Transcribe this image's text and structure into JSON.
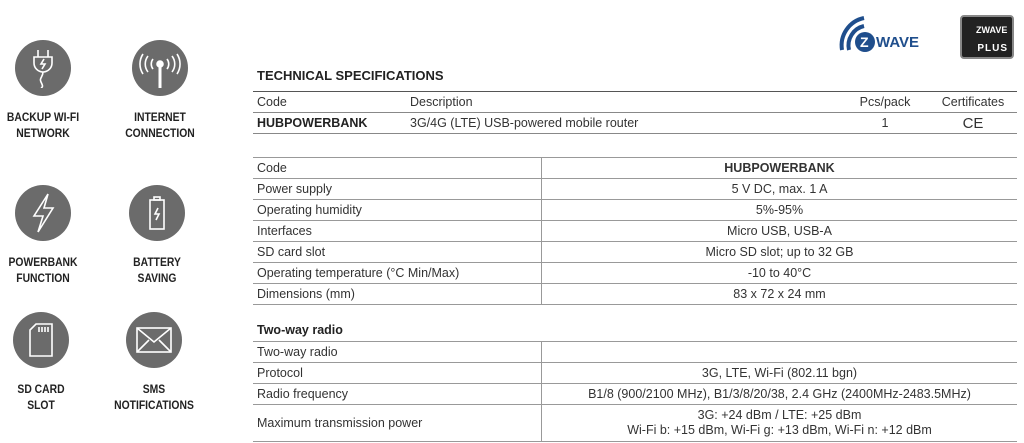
{
  "features": [
    {
      "icon": "plug-icon",
      "label1": "BACKUP WI-FI",
      "label2": "NETWORK"
    },
    {
      "icon": "antenna-icon",
      "label1": "INTERNET",
      "label2": "CONNECTION"
    },
    {
      "icon": "lightning-icon",
      "label1": "POWERBANK",
      "label2": "FUNCTION"
    },
    {
      "icon": "battery-icon",
      "label1": "BATTERY",
      "label2": "SAVING"
    },
    {
      "icon": "sd-card-icon",
      "label1": "SD CARD",
      "label2": "SLOT"
    },
    {
      "icon": "envelope-icon",
      "label1": "SMS",
      "label2": "NOTIFICATIONS"
    }
  ],
  "logos": {
    "zwave": "ZWAVE",
    "zwave_plus_top": "ZWAVE",
    "zwave_plus_bottom": "PLUS"
  },
  "title": "TECHNICAL SPECIFICATIONS",
  "product_table": {
    "headers": [
      "Code",
      "Description",
      "Pcs/pack",
      "Certificates"
    ],
    "row": [
      "HUBPOWERBANK",
      "3G/4G (LTE) USB-powered mobile router",
      "1",
      "CE"
    ]
  },
  "specs": [
    [
      "Code",
      "HUBPOWERBANK"
    ],
    [
      "Power supply",
      "5 V DC, max. 1 A"
    ],
    [
      "Operating humidity",
      "5%-95%"
    ],
    [
      "Interfaces",
      "Micro USB, USB-A"
    ],
    [
      "SD card slot",
      "Micro SD slot; up to 32 GB"
    ],
    [
      "Operating temperature (°C Min/Max)",
      "-10 to 40°C"
    ],
    [
      "Dimensions (mm)",
      "83 x 72 x 24 mm"
    ]
  ],
  "radio_title": "Two-way radio",
  "radio": [
    [
      "Two-way radio",
      ""
    ],
    [
      "Protocol",
      "3G, LTE, Wi-Fi (802.11 bgn)"
    ],
    [
      "Radio frequency",
      "B1/8 (900/2100 MHz), B1/3/8/20/38, 2.4 GHz (2400MHz-2483.5MHz)"
    ],
    [
      "Maximum transmission power",
      "3G: +24 dBm / LTE: +25 dBm",
      "Wi-Fi b: +15 dBm, Wi-Fi g: +13 dBm, Wi-Fi n: +12 dBm"
    ]
  ]
}
